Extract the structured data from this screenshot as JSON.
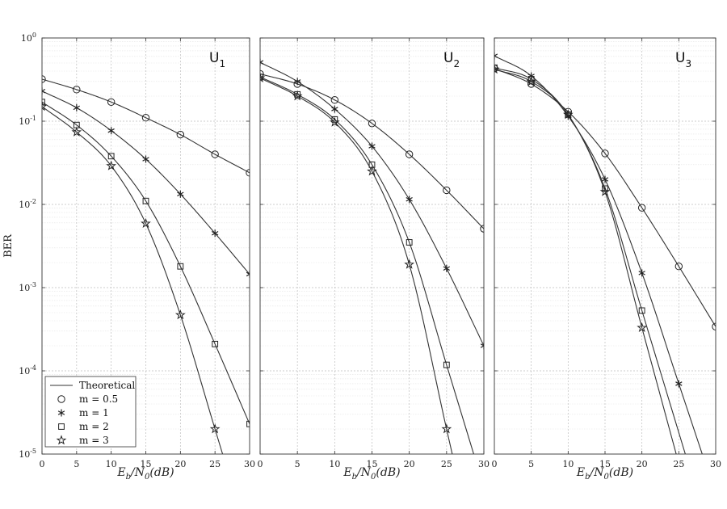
{
  "chart_data": [
    {
      "type": "line",
      "title": "U",
      "title_sub": "1",
      "xlabel": "Eb/N0(dB)",
      "ylabel": "BER",
      "xlim": [
        0,
        30
      ],
      "ylim": [
        1e-05,
        1
      ],
      "yscale": "log",
      "grid": true,
      "x_ticks": [
        "0",
        "5",
        "10",
        "15",
        "20",
        "25",
        "30"
      ],
      "y_ticks": [
        {
          "base": "10",
          "exp": "0"
        },
        {
          "base": "10",
          "exp": "-1"
        },
        {
          "base": "10",
          "exp": "-2"
        },
        {
          "base": "10",
          "exp": "-3"
        },
        {
          "base": "10",
          "exp": "-4"
        },
        {
          "base": "10",
          "exp": "-5"
        }
      ],
      "series": [
        {
          "name": "m = 0.5",
          "x": [
            0,
            5,
            10,
            15,
            20,
            25,
            30
          ],
          "values": [
            0.32,
            0.24,
            0.17,
            0.11,
            0.069,
            0.04,
            0.024
          ]
        },
        {
          "name": "m = 1",
          "x": [
            0,
            5,
            10,
            15,
            20,
            25,
            30
          ],
          "values": [
            0.23,
            0.145,
            0.077,
            0.035,
            0.0133,
            0.0045,
            0.00145
          ]
        },
        {
          "name": "m = 2",
          "x": [
            0,
            5,
            10,
            15,
            20,
            25,
            30
          ],
          "values": [
            0.17,
            0.09,
            0.038,
            0.011,
            0.0018,
            0.00021,
            2.3e-05
          ]
        },
        {
          "name": "m = 3",
          "x": [
            0,
            5,
            10,
            15,
            20,
            25
          ],
          "values": [
            0.15,
            0.074,
            0.029,
            0.0059,
            0.00047,
            2e-05
          ]
        }
      ],
      "legend": {
        "placement": "bottom-left",
        "entries": [
          "Theoretical",
          "m = 0.5",
          "m = 1",
          "m = 2",
          "m = 3"
        ]
      }
    },
    {
      "type": "line",
      "title": "U",
      "title_sub": "2",
      "xlabel": "Eb/N0(dB)",
      "xlim": [
        0,
        30
      ],
      "ylim": [
        1e-05,
        1
      ],
      "yscale": "log",
      "grid": true,
      "x_ticks": [
        "0",
        "5",
        "10",
        "15",
        "20",
        "25",
        "30"
      ],
      "series": [
        {
          "name": "m = 0.5",
          "x": [
            0,
            5,
            10,
            15,
            20,
            25,
            30
          ],
          "values": [
            0.37,
            0.28,
            0.18,
            0.094,
            0.04,
            0.0148,
            0.0051
          ]
        },
        {
          "name": "m = 1",
          "x": [
            0,
            5,
            10,
            15,
            20,
            25,
            30
          ],
          "values": [
            0.51,
            0.3,
            0.14,
            0.05,
            0.0115,
            0.0017,
            0.0002
          ]
        },
        {
          "name": "m = 2",
          "x": [
            0,
            5,
            10,
            15,
            20,
            25
          ],
          "values": [
            0.34,
            0.21,
            0.105,
            0.03,
            0.0035,
            0.000118
          ]
        },
        {
          "name": "m = 3",
          "x": [
            0,
            5,
            10,
            15,
            20,
            25
          ],
          "values": [
            0.33,
            0.2,
            0.097,
            0.025,
            0.0019,
            2e-05
          ]
        }
      ]
    },
    {
      "type": "line",
      "title": "U",
      "title_sub": "3",
      "xlabel": "Eb/N0(dB)",
      "xlim": [
        0,
        30
      ],
      "ylim": [
        1e-05,
        1
      ],
      "yscale": "log",
      "grid": true,
      "x_ticks": [
        "0",
        "5",
        "10",
        "15",
        "20",
        "25",
        "30"
      ],
      "series": [
        {
          "name": "m = 0.5",
          "x": [
            0,
            5,
            10,
            15,
            20,
            25,
            30
          ],
          "values": [
            0.43,
            0.28,
            0.13,
            0.041,
            0.0091,
            0.0018,
            0.00034
          ]
        },
        {
          "name": "m = 1",
          "x": [
            0,
            5,
            10,
            15,
            20,
            25
          ],
          "values": [
            0.61,
            0.35,
            0.115,
            0.02,
            0.0015,
            7e-05
          ]
        },
        {
          "name": "m = 2",
          "x": [
            0,
            5,
            10,
            15,
            20
          ],
          "values": [
            0.44,
            0.32,
            0.12,
            0.0155,
            0.00053
          ]
        },
        {
          "name": "m = 3",
          "x": [
            0,
            5,
            10,
            15,
            20
          ],
          "values": [
            0.42,
            0.3,
            0.12,
            0.0142,
            0.00033
          ]
        }
      ]
    }
  ]
}
